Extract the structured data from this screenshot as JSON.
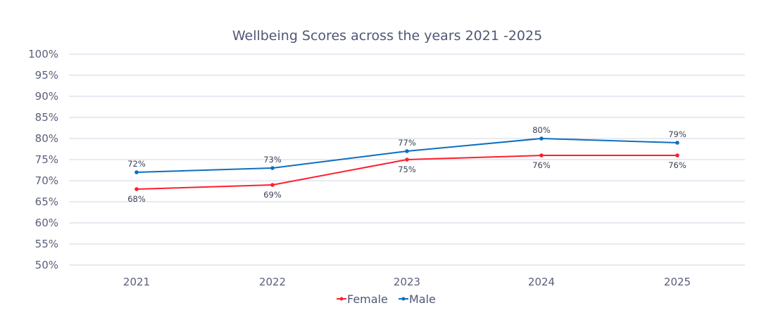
{
  "chart_data": {
    "type": "line",
    "title": "Wellbeing Scores across the years 2021 -2025",
    "categories": [
      "2021",
      "2022",
      "2023",
      "2024",
      "2025"
    ],
    "series": [
      {
        "name": "Female",
        "values": [
          68,
          69,
          75,
          76,
          76
        ],
        "color": "#ff1e2d",
        "labels": [
          "68%",
          "69%",
          "75%",
          "76%",
          "76%"
        ]
      },
      {
        "name": "Male",
        "values": [
          72,
          73,
          77,
          80,
          79
        ],
        "color": "#0e6ebf",
        "labels": [
          "72%",
          "73%",
          "77%",
          "80%",
          "79%"
        ]
      }
    ],
    "ylim": [
      50,
      100
    ],
    "yticks": [
      "50%",
      "55%",
      "60%",
      "65%",
      "70%",
      "75%",
      "80%",
      "85%",
      "90%",
      "95%",
      "100%"
    ],
    "grid": true,
    "legend": "bottom",
    "xlabel": "",
    "ylabel": ""
  }
}
